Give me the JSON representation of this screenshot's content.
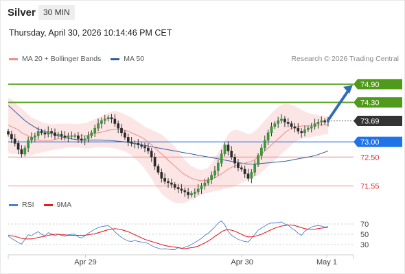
{
  "header": {
    "title": "Silver",
    "interval": "30 MIN"
  },
  "timestamp": "Thursday, April 30, 2026 10:14:46 PM CET",
  "legend": {
    "ma20": {
      "label": "MA 20 + Bollinger Bands",
      "color": "#f28b82"
    },
    "ma50": {
      "label": "MA 50",
      "color": "#2f5f9e"
    }
  },
  "credit": "Research © 2026 Trading Central",
  "rsi_legend": {
    "rsi": {
      "label": "RSI",
      "color": "#4a7fd4"
    },
    "ma9": {
      "label": "9MA",
      "color": "#e02020"
    }
  },
  "chart_data": [
    {
      "type": "candlestick",
      "title": "Silver",
      "interval": "30 MIN",
      "x_tick_labels": [
        "Apr 29",
        "Apr 30",
        "May 1"
      ],
      "ylim": [
        70.95,
        75.46
      ],
      "current_price": 73.69,
      "levels": [
        {
          "value": 74.9,
          "label": "74.90",
          "kind": "resistance"
        },
        {
          "value": 74.3,
          "label": "74.30",
          "kind": "resistance"
        },
        {
          "value": 73.69,
          "label": "73.69",
          "kind": "current"
        },
        {
          "value": 73.0,
          "label": "73.00",
          "kind": "pivot"
        },
        {
          "value": 72.5,
          "label": "72.50",
          "kind": "support"
        },
        {
          "value": 71.55,
          "label": "71.55",
          "kind": "support"
        }
      ],
      "forecast_arrow": {
        "from": 73.69,
        "to": 74.9
      },
      "closes": [
        73.25,
        73.1,
        72.95,
        72.75,
        72.6,
        72.8,
        73.05,
        73.15,
        73.2,
        73.35,
        73.3,
        73.25,
        73.35,
        73.3,
        73.2,
        73.25,
        73.2,
        73.15,
        73.2,
        73.2,
        73.2,
        73.1,
        73.05,
        73.1,
        73.2,
        73.3,
        73.45,
        73.6,
        73.7,
        73.75,
        73.8,
        73.75,
        73.6,
        73.45,
        73.3,
        73.15,
        73.0,
        72.95,
        72.95,
        72.9,
        72.85,
        72.8,
        72.7,
        72.5,
        72.2,
        72.0,
        71.8,
        71.7,
        71.65,
        71.6,
        71.5,
        71.45,
        71.4,
        71.35,
        71.25,
        71.3,
        71.35,
        71.45,
        71.55,
        71.65,
        71.75,
        71.9,
        72.05,
        72.3,
        72.6,
        72.9,
        72.7,
        72.5,
        72.3,
        72.15,
        72.1,
        71.95,
        71.8,
        72.0,
        72.25,
        72.55,
        72.8,
        73.05,
        73.3,
        73.5,
        73.6,
        73.7,
        73.75,
        73.65,
        73.6,
        73.5,
        73.45,
        73.35,
        73.3,
        73.4,
        73.45,
        73.5,
        73.6,
        73.65,
        73.7,
        73.65,
        73.69
      ],
      "ma20": [
        73.55,
        73.5,
        73.45,
        73.4,
        73.3,
        73.25,
        73.2,
        73.15,
        73.1,
        73.05,
        73.05,
        73.05,
        73.05,
        73.05,
        73.08,
        73.1,
        73.12,
        73.15,
        73.18,
        73.2,
        73.2,
        73.2,
        73.2,
        73.2,
        73.22,
        73.25,
        73.28,
        73.3,
        73.32,
        73.35,
        73.38,
        73.4,
        73.42,
        73.42,
        73.4,
        73.38,
        73.35,
        73.3,
        73.25,
        73.2,
        73.15,
        73.08,
        73.0,
        72.9,
        72.8,
        72.7,
        72.6,
        72.5,
        72.4,
        72.3,
        72.2,
        72.1,
        72.0,
        71.92,
        71.86,
        71.8,
        71.76,
        71.74,
        71.72,
        71.72,
        71.74,
        71.78,
        71.82,
        71.88,
        71.95,
        72.02,
        72.1,
        72.16,
        72.2,
        72.24,
        72.28,
        72.3,
        72.32,
        72.36,
        72.42,
        72.5,
        72.6,
        72.7,
        72.8,
        72.9,
        73.0,
        73.1,
        73.2,
        73.3,
        73.38,
        73.44,
        73.48,
        73.5,
        73.52,
        73.52,
        73.53,
        73.54,
        73.55,
        73.56,
        73.56,
        73.56,
        73.56
      ],
      "bollinger_upper": [
        74.45,
        74.4,
        74.3,
        74.2,
        74.1,
        74.0,
        73.9,
        73.8,
        73.75,
        73.7,
        73.65,
        73.62,
        73.6,
        73.58,
        73.58,
        73.6,
        73.6,
        73.6,
        73.6,
        73.6,
        73.58,
        73.58,
        73.6,
        73.62,
        73.65,
        73.7,
        73.75,
        73.8,
        73.85,
        73.9,
        73.95,
        74.0,
        74.02,
        74.0,
        73.95,
        73.9,
        73.85,
        73.8,
        73.72,
        73.65,
        73.58,
        73.5,
        73.45,
        73.4,
        73.35,
        73.3,
        73.25,
        73.15,
        73.05,
        72.95,
        72.85,
        72.7,
        72.55,
        72.4,
        72.3,
        72.2,
        72.15,
        72.1,
        72.08,
        72.1,
        72.15,
        72.3,
        72.45,
        72.65,
        72.85,
        73.05,
        73.25,
        73.35,
        73.4,
        73.38,
        73.35,
        73.3,
        73.25,
        73.28,
        73.35,
        73.45,
        73.58,
        73.7,
        73.82,
        73.95,
        74.05,
        74.15,
        74.22,
        74.25,
        74.25,
        74.22,
        74.18,
        74.12,
        74.05,
        74.0,
        73.96,
        73.92,
        73.9,
        73.88,
        73.86,
        73.85,
        73.85
      ],
      "bollinger_lower": [
        72.65,
        72.6,
        72.6,
        72.6,
        72.55,
        72.55,
        72.55,
        72.55,
        72.6,
        72.62,
        72.65,
        72.68,
        72.7,
        72.72,
        72.75,
        72.75,
        72.78,
        72.8,
        72.82,
        72.82,
        72.82,
        72.82,
        72.8,
        72.78,
        72.78,
        72.8,
        72.82,
        72.82,
        72.82,
        72.82,
        72.82,
        72.8,
        72.78,
        72.75,
        72.72,
        72.68,
        72.62,
        72.55,
        72.45,
        72.35,
        72.25,
        72.1,
        71.95,
        71.8,
        71.6,
        71.45,
        71.3,
        71.2,
        71.12,
        71.05,
        71.0,
        70.98,
        70.98,
        71.0,
        71.05,
        71.1,
        71.15,
        71.2,
        71.25,
        71.3,
        71.32,
        71.35,
        71.38,
        71.4,
        71.42,
        71.45,
        71.48,
        71.5,
        71.55,
        71.6,
        71.65,
        71.7,
        71.75,
        71.8,
        71.85,
        71.9,
        72.0,
        72.1,
        72.2,
        72.3,
        72.4,
        72.5,
        72.6,
        72.7,
        72.8,
        72.9,
        73.0,
        73.05,
        73.1,
        73.12,
        73.14,
        73.16,
        73.18,
        73.2,
        73.22,
        73.24,
        73.25
      ],
      "ma50": [
        74.2,
        74.1,
        74.0,
        73.9,
        73.8,
        73.7,
        73.62,
        73.55,
        73.48,
        73.42,
        73.38,
        73.34,
        73.3,
        73.27,
        73.24,
        73.2,
        73.17,
        73.14,
        73.12,
        73.1,
        73.08,
        73.07,
        73.06,
        73.06,
        73.06,
        73.06,
        73.06,
        73.06,
        73.06,
        73.05,
        73.05,
        73.04,
        73.03,
        73.02,
        73.01,
        73.0,
        72.98,
        72.96,
        72.94,
        72.92,
        72.9,
        72.88,
        72.86,
        72.84,
        72.82,
        72.8,
        72.78,
        72.76,
        72.74,
        72.72,
        72.7,
        72.68,
        72.66,
        72.64,
        72.62,
        72.6,
        72.58,
        72.56,
        72.54,
        72.52,
        72.5,
        72.48,
        72.46,
        72.44,
        72.42,
        72.4,
        72.38,
        72.36,
        72.34,
        72.32,
        72.3,
        72.28,
        72.27,
        72.27,
        72.27,
        72.28,
        72.29,
        72.3,
        72.31,
        72.32,
        72.33,
        72.34,
        72.35,
        72.36,
        72.38,
        72.4,
        72.42,
        72.44,
        72.46,
        72.48,
        72.5,
        72.52,
        72.55,
        72.58,
        72.62,
        72.66,
        72.7
      ]
    },
    {
      "type": "line",
      "title": "RSI",
      "y_tick_labels": [
        "70",
        "50",
        "30"
      ],
      "ylim": [
        10,
        90
      ],
      "reference_lines": [
        70,
        50,
        30
      ],
      "series": [
        {
          "name": "RSI",
          "color": "#4a7fd4",
          "values": [
            46,
            42,
            38,
            34,
            31,
            40,
            49,
            47,
            52,
            55,
            50,
            47,
            53,
            51,
            47,
            50,
            48,
            46,
            49,
            50,
            50,
            45,
            43,
            47,
            52,
            56,
            60,
            63,
            65,
            66,
            67,
            62,
            55,
            49,
            44,
            40,
            37,
            36,
            38,
            36,
            35,
            34,
            32,
            28,
            25,
            23,
            21,
            22,
            21,
            20,
            20,
            24,
            22,
            25,
            27,
            30,
            34,
            38,
            42,
            48,
            52,
            58,
            64,
            72,
            76,
            68,
            56,
            48,
            44,
            40,
            38,
            36,
            35,
            42,
            50,
            58,
            62,
            66,
            70,
            72,
            72,
            73,
            74,
            70,
            68,
            62,
            58,
            52,
            48,
            56,
            60,
            64,
            66,
            67,
            66,
            64,
            65
          ]
        },
        {
          "name": "9MA",
          "color": "#e02020",
          "values": [
            48,
            47,
            46,
            44,
            42,
            41,
            41,
            41,
            42,
            44,
            45,
            46,
            48,
            49,
            50,
            50,
            49,
            49,
            48,
            48,
            48,
            48,
            48,
            48,
            49,
            50,
            51,
            53,
            55,
            57,
            59,
            60,
            61,
            60,
            59,
            57,
            55,
            52,
            49,
            46,
            43,
            40,
            38,
            36,
            34,
            32,
            30,
            28,
            27,
            26,
            25,
            24,
            23,
            22,
            23,
            24,
            25,
            27,
            30,
            33,
            37,
            41,
            46,
            50,
            55,
            58,
            59,
            58,
            56,
            53,
            50,
            47,
            45,
            45,
            46,
            48,
            50,
            53,
            56,
            59,
            62,
            64,
            66,
            67,
            68,
            68,
            67,
            65,
            63,
            61,
            60,
            60,
            60,
            61,
            62,
            63,
            64
          ]
        }
      ]
    }
  ]
}
